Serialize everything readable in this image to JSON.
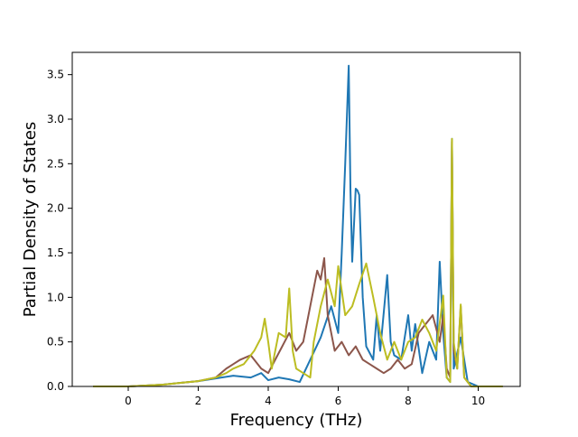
{
  "chart_data": {
    "type": "line",
    "title": "",
    "xlabel": "Frequency (THz)",
    "ylabel": "Partial Density of States",
    "xlim": [
      -1.6,
      11.2
    ],
    "ylim": [
      0.0,
      3.75
    ],
    "x_ticks": [
      0,
      2,
      4,
      6,
      8,
      10
    ],
    "y_ticks": [
      0.0,
      0.5,
      1.0,
      1.5,
      2.0,
      2.5,
      3.0,
      3.5
    ],
    "x_tick_labels": [
      "0",
      "2",
      "4",
      "6",
      "8",
      "10"
    ],
    "y_tick_labels": [
      "0.0",
      "0.5",
      "1.0",
      "1.5",
      "2.0",
      "2.5",
      "3.0",
      "3.5"
    ],
    "grid": false,
    "legend": "none",
    "series": [
      {
        "color": "#1f77b4",
        "x": [
          -1.0,
          0.0,
          0.5,
          1.0,
          1.5,
          2.0,
          2.5,
          3.0,
          3.5,
          3.8,
          4.0,
          4.3,
          4.6,
          4.9,
          5.2,
          5.5,
          5.8,
          6.0,
          6.1,
          6.2,
          6.3,
          6.35,
          6.4,
          6.5,
          6.55,
          6.6,
          6.7,
          6.8,
          7.0,
          7.1,
          7.2,
          7.4,
          7.5,
          7.6,
          7.8,
          8.0,
          8.1,
          8.2,
          8.4,
          8.6,
          8.8,
          8.9,
          9.0,
          9.1,
          9.2,
          9.25,
          9.3,
          9.5,
          9.7,
          10.0,
          10.7
        ],
        "y": [
          0.0,
          0.0,
          0.01,
          0.02,
          0.04,
          0.06,
          0.09,
          0.12,
          0.1,
          0.15,
          0.07,
          0.1,
          0.08,
          0.05,
          0.3,
          0.55,
          0.9,
          0.6,
          1.5,
          2.5,
          3.6,
          2.2,
          1.4,
          2.22,
          2.2,
          2.15,
          1.0,
          0.45,
          0.3,
          0.8,
          0.4,
          1.25,
          0.5,
          0.35,
          0.3,
          0.8,
          0.4,
          0.7,
          0.15,
          0.5,
          0.3,
          1.4,
          0.6,
          0.1,
          0.05,
          2.78,
          0.2,
          0.55,
          0.05,
          0.0,
          0.0
        ]
      },
      {
        "color": "#8c564b",
        "x": [
          -1.0,
          0.0,
          0.5,
          1.0,
          1.5,
          2.0,
          2.5,
          2.8,
          3.0,
          3.2,
          3.5,
          3.8,
          4.0,
          4.2,
          4.4,
          4.6,
          4.8,
          5.0,
          5.2,
          5.4,
          5.5,
          5.6,
          5.7,
          5.9,
          6.1,
          6.3,
          6.5,
          6.7,
          6.9,
          7.1,
          7.3,
          7.5,
          7.7,
          7.9,
          8.1,
          8.3,
          8.5,
          8.7,
          8.9,
          9.0,
          9.1,
          9.2,
          9.25,
          9.3,
          9.4,
          9.5,
          9.6,
          9.8,
          10.0,
          10.7
        ],
        "y": [
          0.0,
          0.0,
          0.01,
          0.02,
          0.04,
          0.06,
          0.1,
          0.2,
          0.25,
          0.3,
          0.35,
          0.2,
          0.15,
          0.3,
          0.45,
          0.6,
          0.4,
          0.5,
          0.9,
          1.3,
          1.2,
          1.44,
          0.8,
          0.4,
          0.5,
          0.35,
          0.45,
          0.3,
          0.25,
          0.2,
          0.15,
          0.2,
          0.3,
          0.2,
          0.25,
          0.6,
          0.7,
          0.8,
          0.5,
          0.8,
          0.2,
          0.1,
          2.75,
          0.4,
          0.2,
          0.9,
          0.1,
          0.0,
          0.0,
          0.0
        ]
      },
      {
        "color": "#bcbd22",
        "x": [
          -1.0,
          0.0,
          0.5,
          1.0,
          1.5,
          2.0,
          2.5,
          2.8,
          3.0,
          3.3,
          3.6,
          3.8,
          3.9,
          4.0,
          4.1,
          4.3,
          4.5,
          4.6,
          4.7,
          4.8,
          5.0,
          5.2,
          5.3,
          5.5,
          5.7,
          5.9,
          6.0,
          6.2,
          6.4,
          6.6,
          6.8,
          7.0,
          7.2,
          7.4,
          7.6,
          7.8,
          8.0,
          8.2,
          8.4,
          8.6,
          8.8,
          9.0,
          9.1,
          9.2,
          9.25,
          9.3,
          9.4,
          9.5,
          9.6,
          9.8,
          10.0,
          10.7
        ],
        "y": [
          0.0,
          0.0,
          0.01,
          0.02,
          0.04,
          0.06,
          0.1,
          0.15,
          0.2,
          0.25,
          0.4,
          0.55,
          0.76,
          0.5,
          0.2,
          0.6,
          0.55,
          1.1,
          0.4,
          0.2,
          0.15,
          0.1,
          0.5,
          0.9,
          1.2,
          0.9,
          1.35,
          0.8,
          0.9,
          1.15,
          1.38,
          1.0,
          0.6,
          0.3,
          0.5,
          0.3,
          0.5,
          0.55,
          0.75,
          0.6,
          0.4,
          1.02,
          0.1,
          0.05,
          2.78,
          0.5,
          0.2,
          0.92,
          0.1,
          0.0,
          0.0,
          0.0
        ]
      }
    ]
  }
}
